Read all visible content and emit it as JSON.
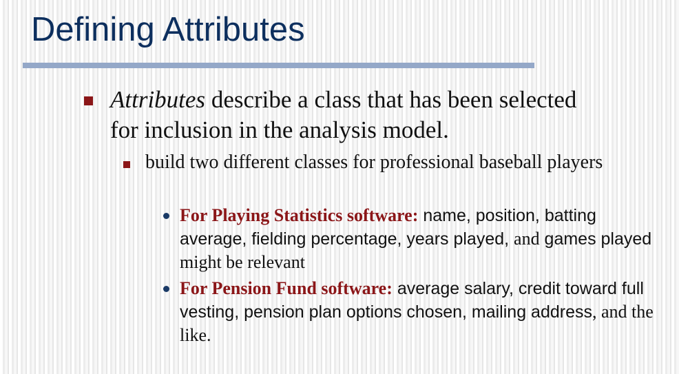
{
  "slide": {
    "title": "Defining Attributes"
  },
  "bullet1": {
    "term": "Attributes",
    "text": " describe a class that has been selected for inclusion in the analysis model."
  },
  "bullet2": {
    "text": "build two different classes for professional baseball players"
  },
  "bullet3a": {
    "lead": "For Playing Statistics software:",
    "part1": " name, position, batting average, fielding percentage, years played, ",
    "part2": "and",
    "part3": " games played",
    "part4": " might be relevant"
  },
  "bullet3b": {
    "lead": "For Pension Fund software:",
    "part1": " average salary, credit toward full vesting, pension plan options chosen, mailing address",
    "part2": ", and the like."
  },
  "colors": {
    "title": "#0d2f5e",
    "rule": "#94a8c8",
    "bullet_square": "#8b1618",
    "lead_text": "#8b1618",
    "bullet_dot": "#1a3a66"
  }
}
